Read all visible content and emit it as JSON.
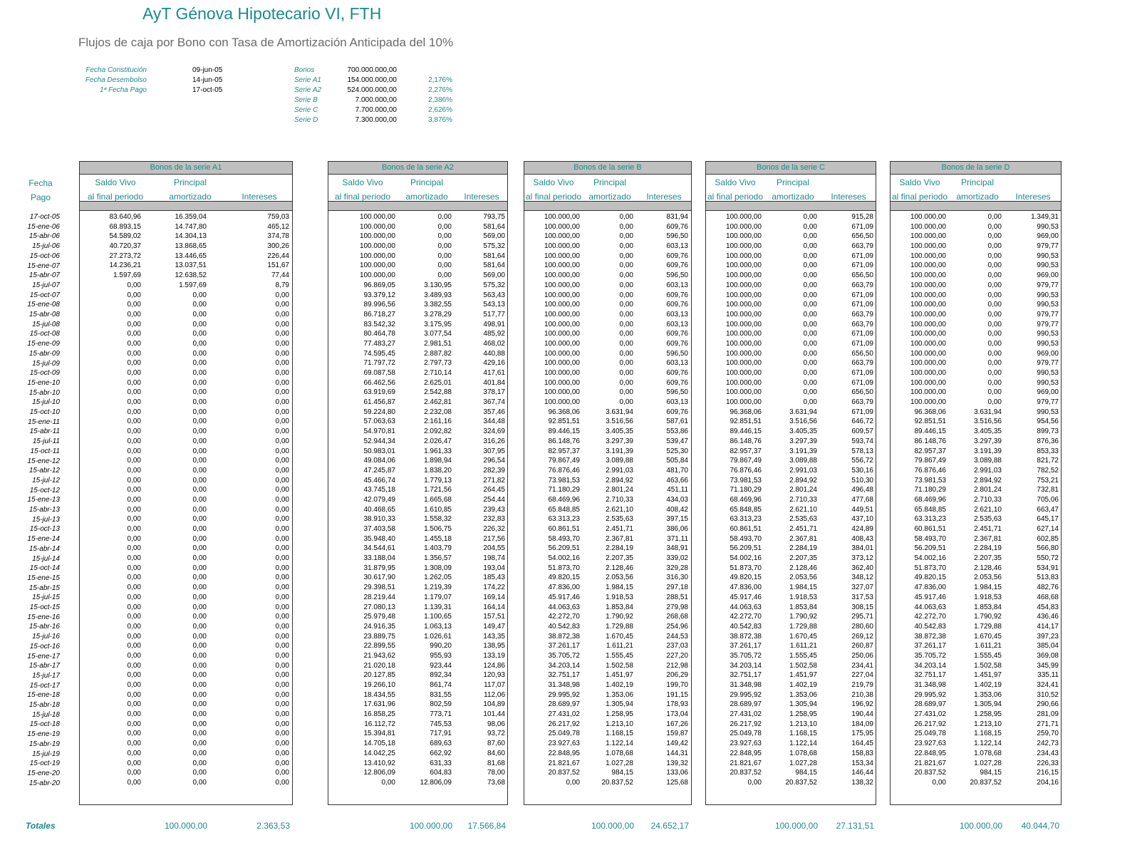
{
  "title": "AyT Génova Hipotecario VI, FTH",
  "subtitle": "Flujos de caja por Bono con Tasa de Amortización Anticipada del 10%",
  "info_left": [
    {
      "label": "Fecha Constitución",
      "value": "09-jun-05"
    },
    {
      "label": "Fecha Desembolso",
      "value": "14-jun-05"
    },
    {
      "label": "1ª Fecha Pago",
      "value": "17-oct-05"
    }
  ],
  "info_right": [
    {
      "label": "Bonos",
      "amount": "700.000.000,00",
      "rate": ""
    },
    {
      "label": "Serie A1",
      "amount": "154.000.000,00",
      "rate": "2,176%"
    },
    {
      "label": "Serie A2",
      "amount": "524.000.000,00",
      "rate": "2,276%"
    },
    {
      "label": "Serie B",
      "amount": "7.000.000,00",
      "rate": "2,386%"
    },
    {
      "label": "Serie C",
      "amount": "7.700.000,00",
      "rate": "2,626%"
    },
    {
      "label": "Serie D",
      "amount": "7.300.000,00",
      "rate": "3,876%"
    }
  ],
  "date_header": {
    "line1": "Fecha",
    "line2": "Pago"
  },
  "col_headers": {
    "saldo1": "Saldo Vivo",
    "saldo2": "al final periodo",
    "principal1": "Principal",
    "principal2": "amortizado",
    "intereses": "Intereses"
  },
  "dates": [
    "17-oct-05",
    "15-ene-06",
    "15-abr-06",
    "15-jul-06",
    "15-oct-06",
    "15-ene-07",
    "15-abr-07",
    "15-jul-07",
    "15-oct-07",
    "15-ene-08",
    "15-abr-08",
    "15-jul-08",
    "15-oct-08",
    "15-ene-09",
    "15-abr-09",
    "15-jul-09",
    "15-oct-09",
    "15-ene-10",
    "15-abr-10",
    "15-jul-10",
    "15-oct-10",
    "15-ene-11",
    "15-abr-11",
    "15-jul-11",
    "15-oct-11",
    "15-ene-12",
    "15-abr-12",
    "15-jul-12",
    "15-oct-12",
    "15-ene-13",
    "15-abr-13",
    "15-jul-13",
    "15-oct-13",
    "15-ene-14",
    "15-abr-14",
    "15-jul-14",
    "15-oct-14",
    "15-ene-15",
    "15-abr-15",
    "15-jul-15",
    "15-oct-15",
    "15-ene-16",
    "15-abr-16",
    "15-jul-16",
    "15-oct-16",
    "15-ene-17",
    "15-abr-17",
    "15-jul-17",
    "15-oct-17",
    "15-ene-18",
    "15-abr-18",
    "15-jul-18",
    "15-oct-18",
    "15-ene-19",
    "15-abr-19",
    "15-jul-19",
    "15-oct-19",
    "15-ene-20",
    "15-abr-20"
  ],
  "totals_label": "Totales",
  "tables": [
    {
      "title": "Bonos de la serie A1",
      "saldo": [
        "83.640,96",
        "68.893,15",
        "54.589,02",
        "40.720,37",
        "27.273,72",
        "14.236,21",
        "1.597,69",
        "0,00",
        "0,00",
        "0,00",
        "0,00",
        "0,00",
        "0,00",
        "0,00",
        "0,00",
        "0,00",
        "0,00",
        "0,00",
        "0,00",
        "0,00",
        "0,00",
        "0,00",
        "0,00",
        "0,00",
        "0,00",
        "0,00",
        "0,00",
        "0,00",
        "0,00",
        "0,00",
        "0,00",
        "0,00",
        "0,00",
        "0,00",
        "0,00",
        "0,00",
        "0,00",
        "0,00",
        "0,00",
        "0,00",
        "0,00",
        "0,00",
        "0,00",
        "0,00",
        "0,00",
        "0,00",
        "0,00",
        "0,00",
        "0,00",
        "0,00",
        "0,00",
        "0,00",
        "0,00",
        "0,00",
        "0,00",
        "0,00",
        "0,00",
        "0,00",
        "0,00"
      ],
      "principal": [
        "16.359,04",
        "14.747,80",
        "14.304,13",
        "13.868,65",
        "13.446,65",
        "13.037,51",
        "12.638,52",
        "1.597,69",
        "0,00",
        "0,00",
        "0,00",
        "0,00",
        "0,00",
        "0,00",
        "0,00",
        "0,00",
        "0,00",
        "0,00",
        "0,00",
        "0,00",
        "0,00",
        "0,00",
        "0,00",
        "0,00",
        "0,00",
        "0,00",
        "0,00",
        "0,00",
        "0,00",
        "0,00",
        "0,00",
        "0,00",
        "0,00",
        "0,00",
        "0,00",
        "0,00",
        "0,00",
        "0,00",
        "0,00",
        "0,00",
        "0,00",
        "0,00",
        "0,00",
        "0,00",
        "0,00",
        "0,00",
        "0,00",
        "0,00",
        "0,00",
        "0,00",
        "0,00",
        "0,00",
        "0,00",
        "0,00",
        "0,00",
        "0,00",
        "0,00",
        "0,00",
        "0,00"
      ],
      "intereses": [
        "759,03",
        "465,12",
        "374,78",
        "300,26",
        "226,44",
        "151,67",
        "77,44",
        "8,79",
        "0,00",
        "0,00",
        "0,00",
        "0,00",
        "0,00",
        "0,00",
        "0,00",
        "0,00",
        "0,00",
        "0,00",
        "0,00",
        "0,00",
        "0,00",
        "0,00",
        "0,00",
        "0,00",
        "0,00",
        "0,00",
        "0,00",
        "0,00",
        "0,00",
        "0,00",
        "0,00",
        "0,00",
        "0,00",
        "0,00",
        "0,00",
        "0,00",
        "0,00",
        "0,00",
        "0,00",
        "0,00",
        "0,00",
        "0,00",
        "0,00",
        "0,00",
        "0,00",
        "0,00",
        "0,00",
        "0,00",
        "0,00",
        "0,00",
        "0,00",
        "0,00",
        "0,00",
        "0,00",
        "0,00",
        "0,00",
        "0,00",
        "0,00",
        "0,00"
      ],
      "total_principal": "100.000,00",
      "total_intereses": "2.363,53"
    },
    {
      "title": "Bonos de la serie A2",
      "saldo": [
        "100.000,00",
        "100.000,00",
        "100.000,00",
        "100.000,00",
        "100.000,00",
        "100.000,00",
        "100.000,00",
        "96.869,05",
        "93.379,12",
        "89.996,56",
        "86.718,27",
        "83.542,32",
        "80.464,78",
        "77.483,27",
        "74.595,45",
        "71.797,72",
        "69.087,58",
        "66.462,56",
        "63.919,69",
        "61.456,87",
        "59.224,80",
        "57.063,63",
        "54.970,81",
        "52.944,34",
        "50.983,01",
        "49.084,06",
        "47.245,87",
        "45.466,74",
        "43.745,18",
        "42.079,49",
        "40.468,65",
        "38.910,33",
        "37.403,58",
        "35.948,40",
        "34.544,61",
        "33.188,04",
        "31.879,95",
        "30.617,90",
        "29.398,51",
        "28.219,44",
        "27.080,13",
        "25.979,48",
        "24.916,35",
        "23.889,75",
        "22.899,55",
        "21.943,62",
        "21.020,18",
        "20.127,85",
        "19.266,10",
        "18.434,55",
        "17.631,96",
        "16.858,25",
        "16.112,72",
        "15.394,81",
        "14.705,18",
        "14.042,25",
        "13.410,92",
        "12.806,09",
        "0,00"
      ],
      "principal": [
        "0,00",
        "0,00",
        "0,00",
        "0,00",
        "0,00",
        "0,00",
        "0,00",
        "3.130,95",
        "3.489,93",
        "3.382,55",
        "3.278,29",
        "3.175,95",
        "3.077,54",
        "2.981,51",
        "2.887,82",
        "2.797,73",
        "2.710,14",
        "2.625,01",
        "2.542,88",
        "2.462,81",
        "2.232,08",
        "2.161,16",
        "2.092,82",
        "2.026,47",
        "1.961,33",
        "1.898,94",
        "1.838,20",
        "1.779,13",
        "1.721,56",
        "1.665,68",
        "1.610,85",
        "1.558,32",
        "1.506,75",
        "1.455,18",
        "1.403,79",
        "1.356,57",
        "1.308,09",
        "1.262,05",
        "1.219,39",
        "1.179,07",
        "1.139,31",
        "1.100,65",
        "1.063,13",
        "1.026,61",
        "990,20",
        "955,93",
        "923,44",
        "892,34",
        "861,74",
        "831,55",
        "802,59",
        "773,71",
        "745,53",
        "717,91",
        "689,63",
        "662,92",
        "631,33",
        "604,83",
        "12.806,09"
      ],
      "intereses": [
        "793,75",
        "581,64",
        "569,00",
        "575,32",
        "581,64",
        "581,64",
        "569,00",
        "575,32",
        "563,43",
        "543,13",
        "517,77",
        "498,91",
        "485,92",
        "468,02",
        "440,88",
        "429,16",
        "417,61",
        "401,84",
        "378,17",
        "367,74",
        "357,46",
        "344,48",
        "324,69",
        "316,26",
        "307,95",
        "296,54",
        "282,39",
        "271,82",
        "264,45",
        "254,44",
        "239,43",
        "232,83",
        "226,32",
        "217,56",
        "204,55",
        "198,74",
        "193,04",
        "185,43",
        "174,22",
        "169,14",
        "164,14",
        "157,51",
        "149,47",
        "143,35",
        "138,95",
        "133,19",
        "124,86",
        "120,93",
        "117,07",
        "112,06",
        "104,89",
        "101,44",
        "98,06",
        "93,72",
        "87,60",
        "84,60",
        "81,68",
        "78,00",
        "73,68"
      ],
      "total_principal": "100.000,00",
      "total_intereses": "17.566,84"
    },
    {
      "title": "Bonos de la serie B",
      "saldo": [
        "100.000,00",
        "100.000,00",
        "100.000,00",
        "100.000,00",
        "100.000,00",
        "100.000,00",
        "100.000,00",
        "100.000,00",
        "100.000,00",
        "100.000,00",
        "100.000,00",
        "100.000,00",
        "100.000,00",
        "100.000,00",
        "100.000,00",
        "100.000,00",
        "100.000,00",
        "100.000,00",
        "100.000,00",
        "100.000,00",
        "96.368,06",
        "92.851,51",
        "89.446,15",
        "86.148,76",
        "82.957,37",
        "79.867,49",
        "76.876,46",
        "73.981,53",
        "71.180,29",
        "68.469,96",
        "65.848,85",
        "63.313,23",
        "60.861,51",
        "58.493,70",
        "56.209,51",
        "54.002,16",
        "51.873,70",
        "49.820,15",
        "47.836,00",
        "45.917,46",
        "44.063,63",
        "42.272,70",
        "40.542,83",
        "38.872,38",
        "37.261,17",
        "35.705,72",
        "34.203,14",
        "32.751,17",
        "31.348,98",
        "29.995,92",
        "28.689,97",
        "27.431,02",
        "26.217,92",
        "25.049,78",
        "23.927,63",
        "22.848,95",
        "21.821,67",
        "20.837,52",
        "0,00"
      ],
      "principal": [
        "0,00",
        "0,00",
        "0,00",
        "0,00",
        "0,00",
        "0,00",
        "0,00",
        "0,00",
        "0,00",
        "0,00",
        "0,00",
        "0,00",
        "0,00",
        "0,00",
        "0,00",
        "0,00",
        "0,00",
        "0,00",
        "0,00",
        "0,00",
        "3.631,94",
        "3.516,56",
        "3.405,35",
        "3.297,39",
        "3.191,39",
        "3.089,88",
        "2.991,03",
        "2.894,92",
        "2.801,24",
        "2.710,33",
        "2.621,10",
        "2.535,63",
        "2.451,71",
        "2.367,81",
        "2.284,19",
        "2.207,35",
        "2.128,46",
        "2.053,56",
        "1.984,15",
        "1.918,53",
        "1.853,84",
        "1.790,92",
        "1.729,88",
        "1.670,45",
        "1.611,21",
        "1.555,45",
        "1.502,58",
        "1.451,97",
        "1.402,19",
        "1.353,06",
        "1.305,94",
        "1.258,95",
        "1.213,10",
        "1.168,15",
        "1.122,14",
        "1.078,68",
        "1.027,28",
        "984,15",
        "20.837,52"
      ],
      "intereses": [
        "831,94",
        "609,76",
        "596,50",
        "603,13",
        "609,76",
        "609,76",
        "596,50",
        "603,13",
        "609,76",
        "609,76",
        "603,13",
        "603,13",
        "609,76",
        "609,76",
        "596,50",
        "603,13",
        "609,76",
        "609,76",
        "596,50",
        "603,13",
        "609,76",
        "587,61",
        "553,86",
        "539,47",
        "525,30",
        "505,84",
        "481,70",
        "463,66",
        "451,11",
        "434,03",
        "408,42",
        "397,15",
        "386,06",
        "371,11",
        "348,91",
        "339,02",
        "329,28",
        "316,30",
        "297,18",
        "288,51",
        "279,98",
        "268,68",
        "254,96",
        "244,53",
        "237,03",
        "227,20",
        "212,98",
        "206,29",
        "199,70",
        "191,15",
        "178,93",
        "173,04",
        "167,26",
        "159,87",
        "149,42",
        "144,31",
        "139,32",
        "133,06",
        "125,68"
      ],
      "total_principal": "100.000,00",
      "total_intereses": "24.652,17"
    },
    {
      "title": "Bonos de la serie C",
      "saldo": [
        "100.000,00",
        "100.000,00",
        "100.000,00",
        "100.000,00",
        "100.000,00",
        "100.000,00",
        "100.000,00",
        "100.000,00",
        "100.000,00",
        "100.000,00",
        "100.000,00",
        "100.000,00",
        "100.000,00",
        "100.000,00",
        "100.000,00",
        "100.000,00",
        "100.000,00",
        "100.000,00",
        "100.000,00",
        "100.000,00",
        "96.368,06",
        "92.851,51",
        "89.446,15",
        "86.148,76",
        "82.957,37",
        "79.867,49",
        "76.876,46",
        "73.981,53",
        "71.180,29",
        "68.469,96",
        "65.848,85",
        "63.313,23",
        "60.861,51",
        "58.493,70",
        "56.209,51",
        "54.002,16",
        "51.873,70",
        "49.820,15",
        "47.836,00",
        "45.917,46",
        "44.063,63",
        "42.272,70",
        "40.542,83",
        "38.872,38",
        "37.261,17",
        "35.705,72",
        "34.203,14",
        "32.751,17",
        "31.348,98",
        "29.995,92",
        "28.689,97",
        "27.431,02",
        "26.217,92",
        "25.049,78",
        "23.927,63",
        "22.848,95",
        "21.821,67",
        "20.837,52",
        "0,00"
      ],
      "principal": [
        "0,00",
        "0,00",
        "0,00",
        "0,00",
        "0,00",
        "0,00",
        "0,00",
        "0,00",
        "0,00",
        "0,00",
        "0,00",
        "0,00",
        "0,00",
        "0,00",
        "0,00",
        "0,00",
        "0,00",
        "0,00",
        "0,00",
        "0,00",
        "3.631,94",
        "3.516,56",
        "3.405,35",
        "3.297,39",
        "3.191,39",
        "3.089,88",
        "2.991,03",
        "2.894,92",
        "2.801,24",
        "2.710,33",
        "2.621,10",
        "2.535,63",
        "2.451,71",
        "2.367,81",
        "2.284,19",
        "2.207,35",
        "2.128,46",
        "2.053,56",
        "1.984,15",
        "1.918,53",
        "1.853,84",
        "1.790,92",
        "1.729,88",
        "1.670,45",
        "1.611,21",
        "1.555,45",
        "1.502,58",
        "1.451,97",
        "1.402,19",
        "1.353,06",
        "1.305,94",
        "1.258,95",
        "1.213,10",
        "1.168,15",
        "1.122,14",
        "1.078,68",
        "1.027,28",
        "984,15",
        "20.837,52"
      ],
      "intereses": [
        "915,28",
        "671,09",
        "656,50",
        "663,79",
        "671,09",
        "671,09",
        "656,50",
        "663,79",
        "671,09",
        "671,09",
        "663,79",
        "663,79",
        "671,09",
        "671,09",
        "656,50",
        "663,79",
        "671,09",
        "671,09",
        "656,50",
        "663,79",
        "671,09",
        "646,72",
        "609,57",
        "593,74",
        "578,13",
        "556,72",
        "530,16",
        "510,30",
        "496,48",
        "477,68",
        "449,51",
        "437,10",
        "424,89",
        "408,43",
        "384,01",
        "373,12",
        "362,40",
        "348,12",
        "327,07",
        "317,53",
        "308,15",
        "295,71",
        "280,60",
        "269,12",
        "260,87",
        "250,06",
        "234,41",
        "227,04",
        "219,79",
        "210,38",
        "196,92",
        "190,44",
        "184,09",
        "175,95",
        "164,45",
        "158,83",
        "153,34",
        "146,44",
        "138,32"
      ],
      "total_principal": "100.000,00",
      "total_intereses": "27.131,51"
    },
    {
      "title": "Bonos de la serie D",
      "saldo": [
        "100.000,00",
        "100.000,00",
        "100.000,00",
        "100.000,00",
        "100.000,00",
        "100.000,00",
        "100.000,00",
        "100.000,00",
        "100.000,00",
        "100.000,00",
        "100.000,00",
        "100.000,00",
        "100.000,00",
        "100.000,00",
        "100.000,00",
        "100.000,00",
        "100.000,00",
        "100.000,00",
        "100.000,00",
        "100.000,00",
        "96.368,06",
        "92.851,51",
        "89.446,15",
        "86.148,76",
        "82.957,37",
        "79.867,49",
        "76.876,46",
        "73.981,53",
        "71.180,29",
        "68.469,96",
        "65.848,85",
        "63.313,23",
        "60.861,51",
        "58.493,70",
        "56.209,51",
        "54.002,16",
        "51.873,70",
        "49.820,15",
        "47.836,00",
        "45.917,46",
        "44.063,63",
        "42.272,70",
        "40.542,83",
        "38.872,38",
        "37.261,17",
        "35.705,72",
        "34.203,14",
        "32.751,17",
        "31.348,98",
        "29.995,92",
        "28.689,97",
        "27.431,02",
        "26.217,92",
        "25.049,78",
        "23.927,63",
        "22.848,95",
        "21.821,67",
        "20.837,52",
        "0,00"
      ],
      "principal": [
        "0,00",
        "0,00",
        "0,00",
        "0,00",
        "0,00",
        "0,00",
        "0,00",
        "0,00",
        "0,00",
        "0,00",
        "0,00",
        "0,00",
        "0,00",
        "0,00",
        "0,00",
        "0,00",
        "0,00",
        "0,00",
        "0,00",
        "0,00",
        "3.631,94",
        "3.516,56",
        "3.405,35",
        "3.297,39",
        "3.191,39",
        "3.089,88",
        "2.991,03",
        "2.894,92",
        "2.801,24",
        "2.710,33",
        "2.621,10",
        "2.535,63",
        "2.451,71",
        "2.367,81",
        "2.284,19",
        "2.207,35",
        "2.128,46",
        "2.053,56",
        "1.984,15",
        "1.918,53",
        "1.853,84",
        "1.790,92",
        "1.729,88",
        "1.670,45",
        "1.611,21",
        "1.555,45",
        "1.502,58",
        "1.451,97",
        "1.402,19",
        "1.353,06",
        "1.305,94",
        "1.258,95",
        "1.213,10",
        "1.168,15",
        "1.122,14",
        "1.078,68",
        "1.027,28",
        "984,15",
        "20.837,52"
      ],
      "intereses": [
        "1.349,31",
        "990,53",
        "969,00",
        "979,77",
        "990,53",
        "990,53",
        "969,00",
        "979,77",
        "990,53",
        "990,53",
        "979,77",
        "979,77",
        "990,53",
        "990,53",
        "969,00",
        "979,77",
        "990,53",
        "990,53",
        "969,00",
        "979,77",
        "990,53",
        "954,56",
        "899,73",
        "876,36",
        "853,33",
        "821,72",
        "782,52",
        "753,21",
        "732,81",
        "705,06",
        "663,47",
        "645,17",
        "627,14",
        "602,85",
        "566,80",
        "550,72",
        "534,91",
        "513,83",
        "482,76",
        "468,68",
        "454,83",
        "436,46",
        "414,17",
        "397,23",
        "385,04",
        "369,08",
        "345,99",
        "335,11",
        "324,41",
        "310,52",
        "290,66",
        "281,09",
        "271,71",
        "259,70",
        "242,73",
        "234,43",
        "226,33",
        "216,15",
        "204,16"
      ],
      "total_principal": "100.000,00",
      "total_intereses": "40.044,70"
    }
  ]
}
